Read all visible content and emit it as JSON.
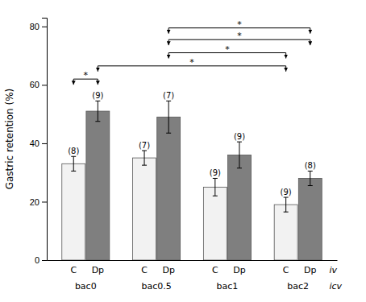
{
  "chart_data": {
    "type": "bar",
    "categories": [
      "bac0",
      "bac0.5",
      "bac1",
      "bac2"
    ],
    "series": [
      {
        "name": "C",
        "color": "#f2f2f2",
        "values": [
          33,
          35,
          25,
          19
        ],
        "errors": [
          2.5,
          2.5,
          3.0,
          2.5
        ],
        "n_labels": [
          "(8)",
          "(7)",
          "(9)",
          "(9)"
        ]
      },
      {
        "name": "Dp",
        "color": "#7f7f7f",
        "values": [
          51,
          49,
          36,
          28
        ],
        "errors": [
          3.5,
          5.5,
          4.5,
          2.5
        ],
        "n_labels": [
          "(9)",
          "(7)",
          "(9)",
          "(8)"
        ]
      }
    ],
    "ylabel": "Gastric retention (%)",
    "ylim": [
      0,
      83
    ],
    "yticks": [
      0,
      20,
      40,
      60,
      80
    ],
    "annotations": [
      "iv",
      "icv"
    ],
    "brackets": [
      {
        "group1": 0,
        "series1": 0,
        "group2": 0,
        "series2": 1,
        "y": 62.0,
        "label": "*"
      },
      {
        "group1": 0,
        "series1": 1,
        "group2": 3,
        "series2": 0,
        "y": 66.5,
        "label": "*"
      },
      {
        "group1": 1,
        "series1": 1,
        "group2": 3,
        "series2": 0,
        "y": 71.0,
        "label": "*"
      },
      {
        "group1": 1,
        "series1": 1,
        "group2": 3,
        "series2": 1,
        "y": 75.5,
        "label": "*"
      },
      {
        "group1": 1,
        "series1": 1,
        "group2": 3,
        "series2": 1,
        "y": 79.5,
        "label": "*"
      }
    ]
  }
}
